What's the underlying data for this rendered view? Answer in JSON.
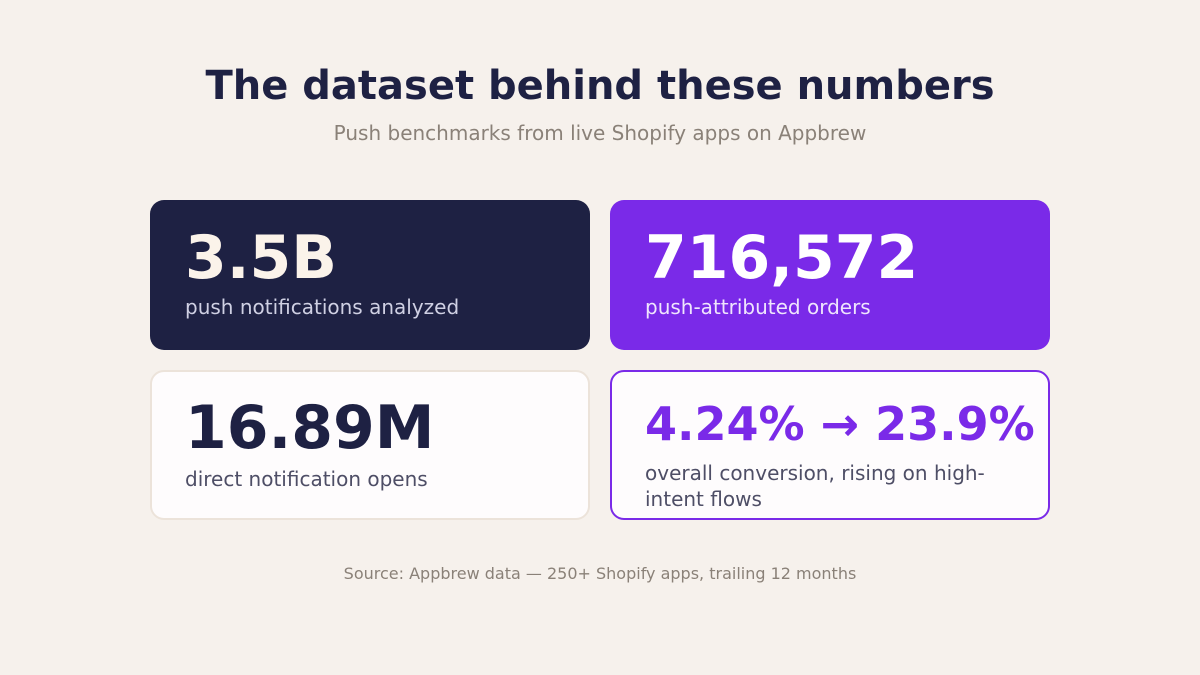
{
  "header": {
    "title": "The dataset behind these numbers",
    "subtitle": "Push benchmarks from live Shopify apps on Appbrew"
  },
  "stats": [
    {
      "value": "3.5B",
      "label": "push notifications analyzed"
    },
    {
      "value": "716,572",
      "label": "push-attributed orders"
    },
    {
      "value": "16.89M",
      "label": "direct notification opens"
    },
    {
      "value": "4.24% → 23.9%",
      "label": "overall conversion, rising on high-intent flows"
    }
  ],
  "footer": {
    "source": "Source: Appbrew data — 250+ Shopify apps, trailing 12 months"
  },
  "colors": {
    "background": "#f6f1ec",
    "navy": "#1e2143",
    "purple": "#7a2ae8",
    "muted": "#8a8178"
  }
}
